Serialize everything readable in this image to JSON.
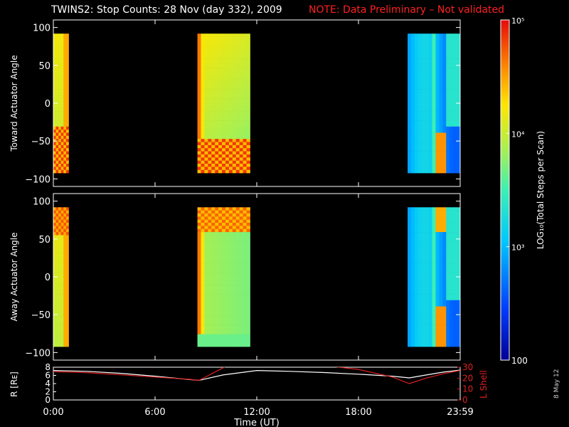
{
  "title": {
    "main": "TWINS2: Stop Counts: 28 Nov (day 332), 2009",
    "note": "NOTE: Data Preliminary – Not validated"
  },
  "date_stamp": "8 May 12",
  "colors": {
    "background": "#000000",
    "note": "#ff2020",
    "r_line": "#ffffff",
    "lshell_line": "#e02020"
  },
  "colorbar": {
    "label": "LOG10(Total Steps per Scan)",
    "ticks": [
      "100",
      "10^3",
      "10^4",
      "10^5"
    ],
    "range": [
      100,
      100000
    ],
    "scale": "log"
  },
  "chart_data": [
    {
      "type": "heatmap",
      "name": "toward-panel",
      "ylabel": "Toward Actuator Angle",
      "ylim": [
        -110,
        110
      ],
      "yticks": [
        "100",
        "50",
        "0",
        "−50",
        "−100"
      ],
      "xlim": [
        0,
        24
      ],
      "data_y_range": [
        -90,
        90
      ],
      "intervals": [
        [
          0.0,
          0.9
        ],
        [
          8.5,
          11.6
        ],
        [
          20.9,
          24.0
        ]
      ]
    },
    {
      "type": "heatmap",
      "name": "away-panel",
      "ylabel": "Away Actuator Angle",
      "ylim": [
        -110,
        110
      ],
      "yticks": [
        "100",
        "50",
        "0",
        "−50",
        "−100"
      ],
      "xlim": [
        0,
        24
      ],
      "data_y_range": [
        -90,
        90
      ],
      "intervals": [
        [
          0.0,
          0.9
        ],
        [
          8.5,
          11.6
        ],
        [
          20.9,
          24.0
        ]
      ]
    },
    {
      "type": "line",
      "name": "orbit-panel",
      "xlabel": "Time (UT)",
      "xticks": [
        "0:00",
        "6:00",
        "12:00",
        "18:00",
        "23:59"
      ],
      "xlim": [
        0,
        24
      ],
      "ylabel_left": "R [RE]",
      "ylim_left": [
        0,
        8
      ],
      "yticks_left": [
        "0",
        "2",
        "4",
        "6",
        "8"
      ],
      "ylabel_right": "L Shell",
      "ylim_right": [
        0,
        30
      ],
      "yticks_right": [
        "0",
        "10",
        "20",
        "30"
      ],
      "series": [
        {
          "axis": "left",
          "x": [
            0,
            2,
            4,
            6,
            8,
            8.6,
            10,
            12,
            14,
            16,
            18,
            20,
            21,
            22,
            23,
            24
          ],
          "y": [
            7.2,
            7.0,
            6.5,
            5.8,
            5.0,
            4.8,
            6.1,
            7.2,
            7.0,
            6.7,
            6.3,
            5.8,
            5.4,
            6.1,
            6.8,
            7.3
          ]
        },
        {
          "axis": "right",
          "x": [
            0,
            2,
            4,
            6,
            8,
            8.6,
            10.2,
            16.3,
            18,
            20,
            21,
            22,
            23,
            24
          ],
          "y": [
            26,
            25,
            23,
            21,
            19,
            18,
            31,
            31,
            28,
            21,
            15,
            20,
            24,
            27
          ]
        }
      ]
    }
  ]
}
